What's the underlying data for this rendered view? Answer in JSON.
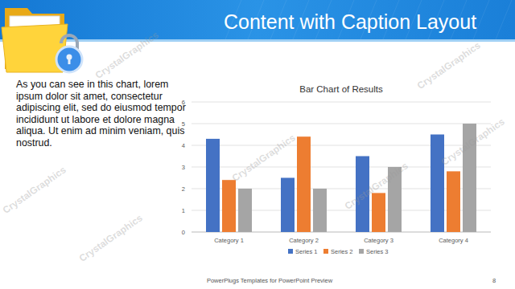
{
  "slide": {
    "title": "Content with Caption Layout",
    "caption": "As you can see in this chart, lorem ipsum dolor sit amet, consectetur adipiscing elit, sed do eiusmod tempor incididunt ut labore et dolore magna aliqua. Ut enim ad minim veniam, quis nostrud.",
    "footer": "PowerPlugs Templates for PowerPoint Preview",
    "page_number": 8,
    "watermark": "CrystalGraphics"
  },
  "chart_data": {
    "type": "bar",
    "title": "Bar Chart of Results",
    "categories": [
      "Category 1",
      "Category 2",
      "Category 3",
      "Category 4"
    ],
    "series": [
      {
        "name": "Series 1",
        "color": "#4472c4",
        "values": [
          4.3,
          2.5,
          3.5,
          4.5
        ]
      },
      {
        "name": "Series 2",
        "color": "#ed7d31",
        "values": [
          2.4,
          4.4,
          1.8,
          2.8
        ]
      },
      {
        "name": "Series 3",
        "color": "#a5a5a5",
        "values": [
          2,
          2,
          3,
          5
        ]
      }
    ],
    "ylim": [
      0,
      6
    ],
    "yticks": [
      0,
      1,
      2,
      3,
      4,
      5,
      6
    ],
    "grid": true,
    "legend": "bottom"
  }
}
